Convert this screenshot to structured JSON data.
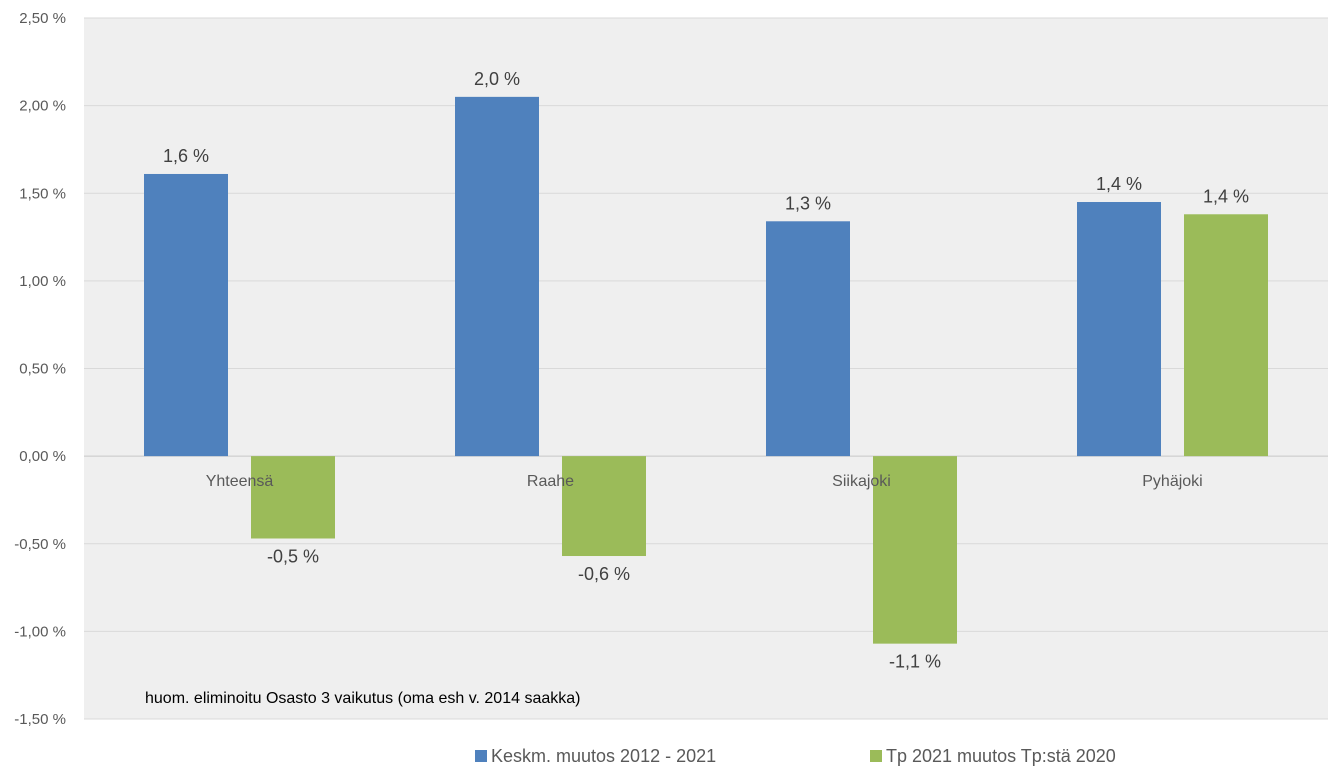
{
  "chart_data": {
    "type": "bar",
    "categories": [
      "Yhteensä",
      "Raahe",
      "Siikajoki",
      "Pyhäjoki"
    ],
    "series": [
      {
        "name": "Keskm. muutos 2012 - 2021",
        "values": [
          1.61,
          2.05,
          1.34,
          1.45
        ],
        "labels": [
          "1,6 %",
          "2,0 %",
          "1,3 %",
          "1,4 %"
        ],
        "color": "#4f81bd"
      },
      {
        "name": "Tp 2021 muutos Tp:stä 2020",
        "values": [
          -0.47,
          -0.57,
          -1.07,
          1.38
        ],
        "labels": [
          "-0,5 %",
          "-0,6 %",
          "-1,1 %",
          "1,4 %"
        ],
        "color": "#9bbb59"
      }
    ],
    "ylim": [
      -1.5,
      2.5
    ],
    "yticks": [
      2.5,
      2.0,
      1.5,
      1.0,
      0.5,
      0.0,
      -0.5,
      -1.0,
      -1.5
    ],
    "ytick_labels": [
      "2,50 %",
      "2,00 %",
      "1,50 %",
      "1,00 %",
      "0,50 %",
      "0,00 %",
      "-0,50 %",
      "-1,00 %",
      "-1,50 %"
    ],
    "annotation": "huom. eliminoitu Osasto 3 vaikutus (oma esh v. 2014 saakka)",
    "grid": true,
    "plot_background": "#efefef",
    "legend_position": "bottom"
  }
}
